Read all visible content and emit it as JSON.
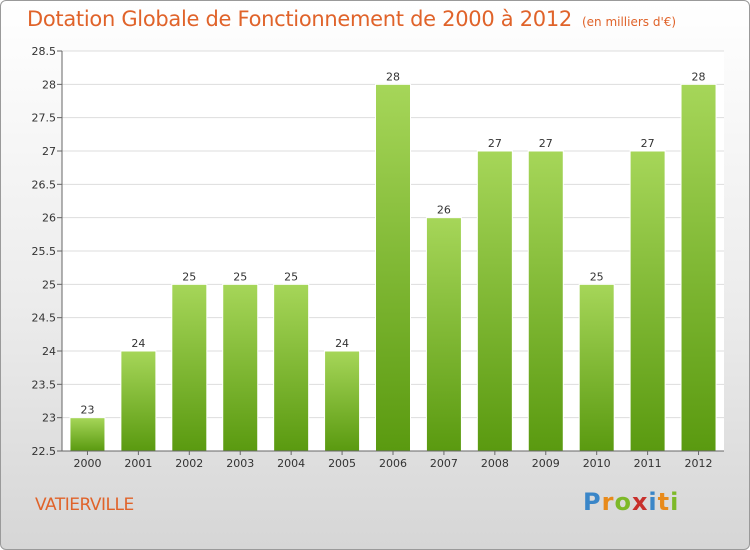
{
  "title": "Dotation Globale de Fonctionnement de 2000 à 2012",
  "unit": "(en milliers d'€)",
  "commune": "VATIERVILLE",
  "logo": [
    "P",
    "r",
    "o",
    "x",
    "i",
    "t",
    "i"
  ],
  "colors": {
    "accent": "#e0632a",
    "bar_light": "#9fd14c",
    "bar_dark": "#5a9a10",
    "grid": "#dddddd"
  },
  "chart_data": {
    "type": "bar",
    "categories": [
      "2000",
      "2001",
      "2002",
      "2003",
      "2004",
      "2005",
      "2006",
      "2007",
      "2008",
      "2009",
      "2010",
      "2011",
      "2012"
    ],
    "values": [
      23,
      24,
      25,
      25,
      25,
      24,
      28,
      26,
      27,
      27,
      25,
      27,
      28
    ],
    "data_labels": [
      "23",
      "24",
      "25",
      "25",
      "25",
      "24",
      "28",
      "26",
      "27",
      "27",
      "25",
      "27",
      "28"
    ],
    "title": "Dotation Globale de Fonctionnement de 2000 à 2012",
    "xlabel": "",
    "ylabel": "",
    "ylim": [
      22.5,
      28.5
    ],
    "yticks": [
      22.5,
      23,
      23.5,
      24,
      24.5,
      25,
      25.5,
      26,
      26.5,
      27,
      27.5,
      28,
      28.5
    ],
    "ytick_labels": [
      "22.5",
      "23",
      "23.5",
      "24",
      "24.5",
      "25",
      "25.5",
      "26",
      "26.5",
      "27",
      "27.5",
      "28",
      "28.5"
    ],
    "grid": true,
    "legend": "none"
  }
}
